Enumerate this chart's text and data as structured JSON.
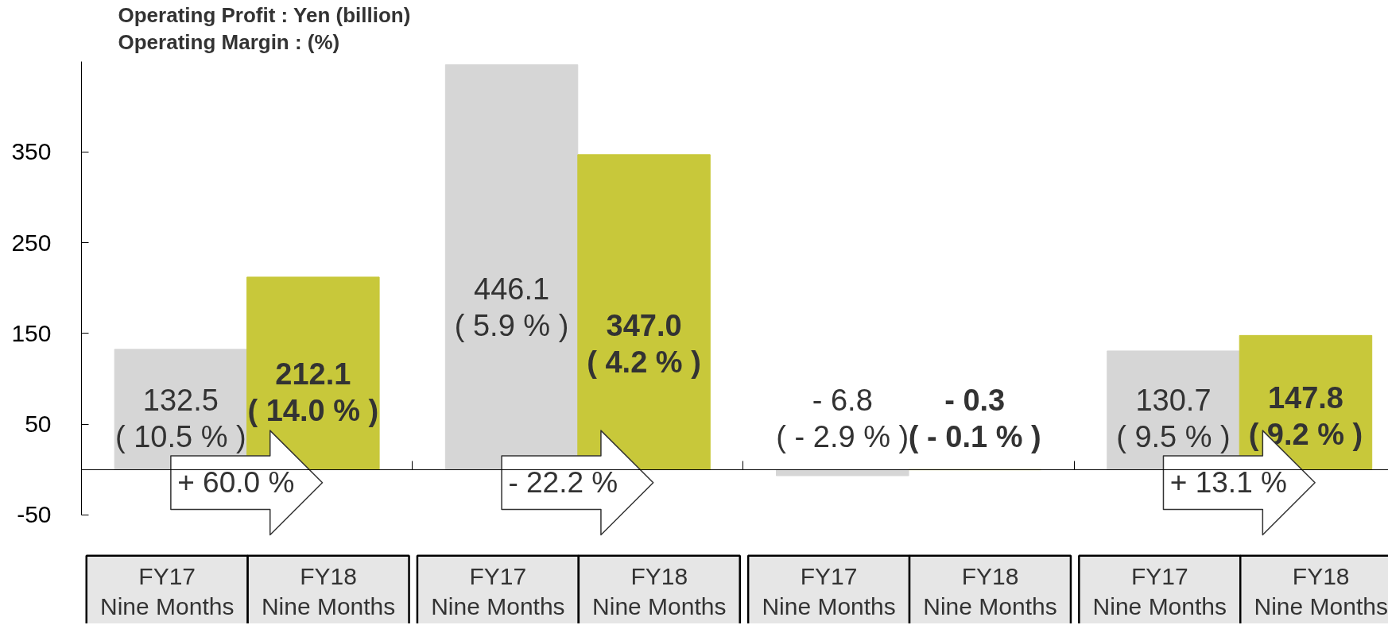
{
  "chart_data": {
    "type": "bar",
    "title": "Operating Profit : Yen (billion)",
    "subtitle": "Operating Margin : (%)",
    "categories": [
      "FY17\nNine Months",
      "FY18\nNine Months",
      "FY17\nNine Months",
      "FY18\nNine Months",
      "FY17\nNine Months",
      "FY18\nNine Months",
      "FY17\nNine Months",
      "FY18\nNine Months"
    ],
    "values": [
      132.5,
      212.1,
      446.1,
      347.0,
      -6.8,
      -0.3,
      130.7,
      147.8
    ],
    "colors": [
      "#d6d6d6",
      "#c8c83a",
      "#d6d6d6",
      "#c8c83a",
      "#d6d6d6",
      "#c8c83a",
      "#d6d6d6",
      "#c8c83a"
    ],
    "value_labels": [
      "132.5\n( 10.5 % )",
      "212.1\n( 14.0 % )",
      "446.1\n( 5.9 % )",
      "347.0\n( 4.2 % )",
      "- 6.8\n( - 2.9 % )",
      "- 0.3\n( - 0.1 % )",
      "130.7\n( 9.5 % )",
      "147.8\n( 9.2 % )"
    ],
    "ylim": [
      -50,
      450
    ],
    "yticks": [
      -50,
      50,
      150,
      250,
      350
    ],
    "annotations": [
      "+ 60.0 %",
      "- 22.2 %",
      "+ 13.1 %"
    ]
  }
}
